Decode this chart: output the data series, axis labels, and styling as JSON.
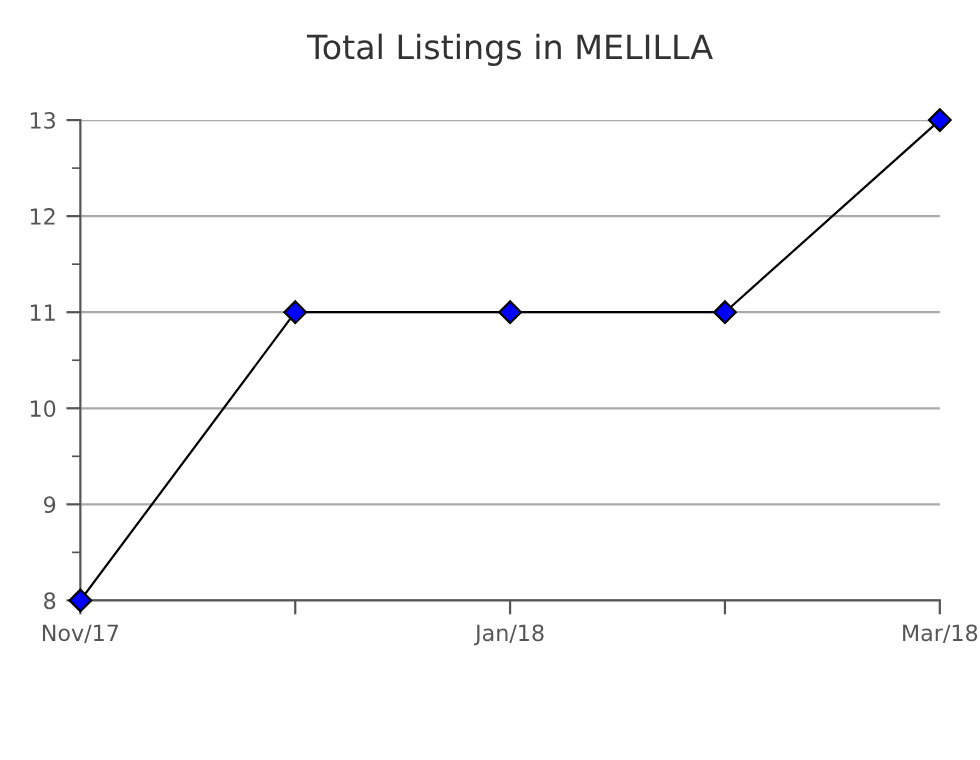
{
  "chart_data": {
    "type": "line",
    "title": "Total Listings in MELILLA",
    "categories": [
      "Nov/17",
      null,
      "Jan/18",
      null,
      "Mar/18"
    ],
    "series": [
      {
        "color": "#0000ff",
        "values": [
          8,
          11,
          11,
          11,
          13
        ]
      }
    ],
    "ylim": [
      8,
      13
    ],
    "yticks": [
      8,
      {
        "value": 8.5,
        "label": null
      },
      9,
      {
        "value": 9.5,
        "label": null
      },
      10,
      {
        "value": 10.5,
        "label": null
      },
      11,
      {
        "value": 11.5,
        "label": null
      },
      12,
      {
        "value": 12.5,
        "label": null
      },
      13
    ],
    "grid": "y",
    "marker": "diamond",
    "line_style": "solid",
    "legend": false
  }
}
